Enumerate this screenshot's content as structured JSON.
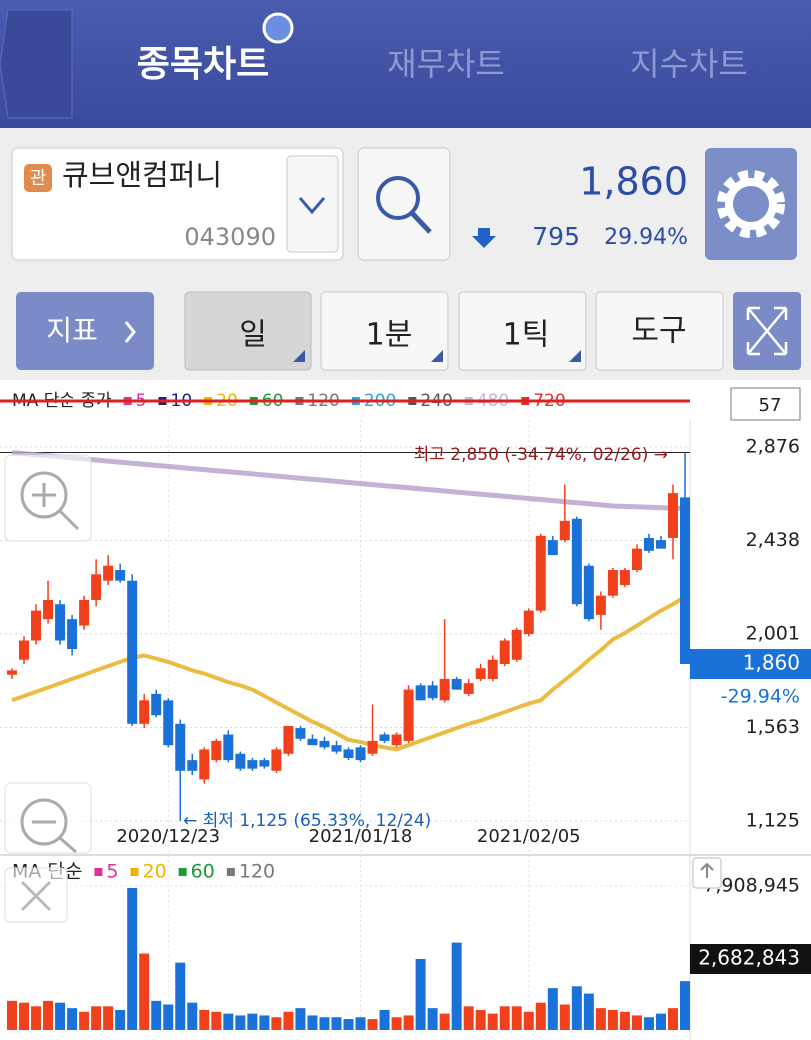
{
  "header": {
    "tabs": [
      "종목차트",
      "재무차트",
      "지수차트"
    ]
  },
  "stock": {
    "badge": "관",
    "name": "큐브앤컴퍼니",
    "code": "043090",
    "price": "1,860",
    "change": "795",
    "change_pct": "29.94%"
  },
  "toolbar": {
    "indicator": "지표",
    "periods": [
      "일",
      "1분",
      "1틱",
      "도구"
    ]
  },
  "chart_data": [
    {
      "type": "candlestick",
      "ma_label": "MA 단순 종가",
      "ma_legend": [
        {
          "name": "5",
          "color": "#e0309a"
        },
        {
          "name": "10",
          "color": "#1a237e"
        },
        {
          "name": "20",
          "color": "#f0b400"
        },
        {
          "name": "60",
          "color": "#1a9a3a"
        },
        {
          "name": "120",
          "color": "#777777"
        },
        {
          "name": "200",
          "color": "#29a8d8"
        },
        {
          "name": "240",
          "color": "#555555"
        },
        {
          "name": "480",
          "color": "#c8b4d8"
        },
        {
          "name": "720",
          "color": "#e03030"
        }
      ],
      "count_box": "57",
      "up_color": "#f0401c",
      "down_color": "#1a72d8",
      "categories": [
        null,
        null,
        null,
        null,
        null,
        null,
        null,
        null,
        null,
        null,
        null,
        null,
        null,
        "2020/12/23",
        null,
        null,
        null,
        null,
        null,
        null,
        null,
        null,
        null,
        null,
        null,
        null,
        null,
        null,
        null,
        "2021/01/18",
        null,
        null,
        null,
        null,
        null,
        null,
        null,
        null,
        null,
        null,
        null,
        null,
        null,
        "2021/02/05",
        null,
        null,
        null,
        null,
        null,
        null,
        null,
        null,
        null,
        null,
        null,
        null,
        null
      ],
      "open": [
        1810,
        1880,
        1970,
        2070,
        2140,
        2070,
        2040,
        2160,
        2250,
        2300,
        2250,
        1580,
        1720,
        1690,
        1580,
        1410,
        1320,
        1410,
        1530,
        1440,
        1410,
        1410,
        1360,
        1440,
        1560,
        1510,
        1500,
        1480,
        1460,
        1470,
        1440,
        1530,
        1480,
        1500,
        1760,
        1760,
        1690,
        1790,
        1720,
        1790,
        1790,
        1860,
        1880,
        2000,
        2110,
        2440,
        2440,
        2540,
        2320,
        2090,
        2180,
        2230,
        2300,
        2450,
        2440,
        2450,
        2640
      ],
      "high": [
        1840,
        1990,
        2140,
        2250,
        2160,
        2090,
        2180,
        2350,
        2370,
        2330,
        2280,
        1720,
        1740,
        1700,
        1600,
        1440,
        1470,
        1510,
        1550,
        1450,
        1420,
        1420,
        1470,
        1570,
        1570,
        1530,
        1520,
        1500,
        1470,
        1480,
        1670,
        1540,
        1540,
        1760,
        1770,
        1780,
        2070,
        1800,
        1790,
        1860,
        1900,
        1980,
        2030,
        2120,
        2470,
        2460,
        2700,
        2550,
        2330,
        2200,
        2310,
        2310,
        2420,
        2470,
        2460,
        2700,
        2850
      ],
      "low": [
        1790,
        1860,
        1950,
        2050,
        1950,
        1900,
        2020,
        2130,
        2230,
        2240,
        1570,
        1560,
        1610,
        1470,
        1125,
        1340,
        1300,
        1400,
        1400,
        1360,
        1360,
        1370,
        1350,
        1430,
        1500,
        1480,
        1460,
        1440,
        1410,
        1400,
        1430,
        1490,
        1470,
        1490,
        1690,
        1690,
        1680,
        1740,
        1710,
        1780,
        1780,
        1850,
        1870,
        1990,
        2100,
        2370,
        2430,
        2130,
        2060,
        2020,
        2170,
        2220,
        2290,
        2380,
        2400,
        2350,
        1860
      ],
      "close": [
        1830,
        1970,
        2110,
        2160,
        1970,
        1930,
        2160,
        2280,
        2320,
        2250,
        1580,
        1690,
        1620,
        1480,
        1360,
        1360,
        1460,
        1500,
        1410,
        1370,
        1370,
        1380,
        1460,
        1570,
        1510,
        1480,
        1470,
        1450,
        1420,
        1410,
        1500,
        1500,
        1530,
        1740,
        1690,
        1700,
        1790,
        1740,
        1770,
        1840,
        1880,
        1970,
        2020,
        2110,
        2460,
        2370,
        2530,
        2140,
        2070,
        2180,
        2300,
        2300,
        2400,
        2390,
        2400,
        2660,
        1860
      ],
      "ma_lines": [
        {
          "name": "20",
          "color": "#e8b020",
          "width": 4,
          "values": [
            1690,
            1710,
            1730,
            1750,
            1770,
            1790,
            1810,
            1830,
            1850,
            1870,
            1890,
            1900,
            1885,
            1870,
            1850,
            1830,
            1815,
            1795,
            1775,
            1760,
            1740,
            1710,
            1680,
            1650,
            1620,
            1590,
            1565,
            1535,
            1505,
            1495,
            1480,
            1470,
            1460,
            1480,
            1500,
            1520,
            1540,
            1560,
            1580,
            1595,
            1615,
            1635,
            1655,
            1675,
            1690,
            1740,
            1785,
            1830,
            1880,
            1925,
            1975,
            2005,
            2040,
            2075,
            2110,
            2140,
            2175
          ]
        },
        {
          "name": "480",
          "color": "#b8a4cc",
          "width": 5,
          "values": [
            2850,
            2845,
            2840,
            2835,
            2830,
            2825,
            2820,
            2815,
            2810,
            2805,
            2800,
            2795,
            2790,
            2785,
            2780,
            2775,
            2770,
            2765,
            2760,
            2755,
            2750,
            2745,
            2740,
            2735,
            2730,
            2725,
            2720,
            2715,
            2710,
            2705,
            2700,
            2695,
            2690,
            2685,
            2680,
            2675,
            2670,
            2665,
            2660,
            2655,
            2650,
            2645,
            2640,
            2635,
            2630,
            2625,
            2620,
            2615,
            2610,
            2605,
            2600,
            2598,
            2596,
            2594,
            2592,
            2590,
            2588
          ]
        }
      ],
      "ylim": [
        1125,
        2876
      ],
      "yticks": [
        {
          "value": 2876,
          "label": "2,876"
        },
        {
          "value": 2438,
          "label": "2,438"
        },
        {
          "value": 2001,
          "label": "2,001"
        },
        {
          "value": 1563,
          "label": "1,563"
        },
        {
          "value": 1125,
          "label": "1,125"
        }
      ],
      "high_note": "최고 2,850 (-34.74%, 02/26) →",
      "low_note": "← 최저 1,125 (65.33%, 12/24)",
      "current_price": {
        "value": 1860,
        "label": "1,860"
      },
      "current_change": "-29.94%"
    },
    {
      "type": "bar",
      "ma_label": "MA 단순",
      "ma_legend": [
        {
          "name": "5",
          "color": "#e0309a"
        },
        {
          "name": "20",
          "color": "#f0b400"
        },
        {
          "name": "60",
          "color": "#1a9a3a"
        },
        {
          "name": "120",
          "color": "#777777"
        }
      ],
      "values": [
        1600000,
        1500000,
        1300000,
        1600000,
        1500000,
        1200000,
        1000000,
        1300000,
        1300000,
        1100000,
        7800000,
        4200000,
        1600000,
        1400000,
        3700000,
        1500000,
        1100000,
        1000000,
        900000,
        800000,
        900000,
        800000,
        700000,
        1000000,
        1200000,
        800000,
        700000,
        700000,
        600000,
        700000,
        600000,
        1100000,
        700000,
        800000,
        3900000,
        1200000,
        900000,
        4800000,
        1300000,
        1100000,
        900000,
        1300000,
        1300000,
        1000000,
        1500000,
        2300000,
        1400000,
        2400000,
        2000000,
        1200000,
        1100000,
        1000000,
        800000,
        700000,
        900000,
        1200000,
        2682843
      ],
      "ylim": [
        0,
        7908945
      ],
      "yticks": [
        {
          "value": 7908945,
          "label": "7,908,945"
        }
      ],
      "current": {
        "value": 2682843,
        "label": "2,682,843"
      }
    }
  ]
}
